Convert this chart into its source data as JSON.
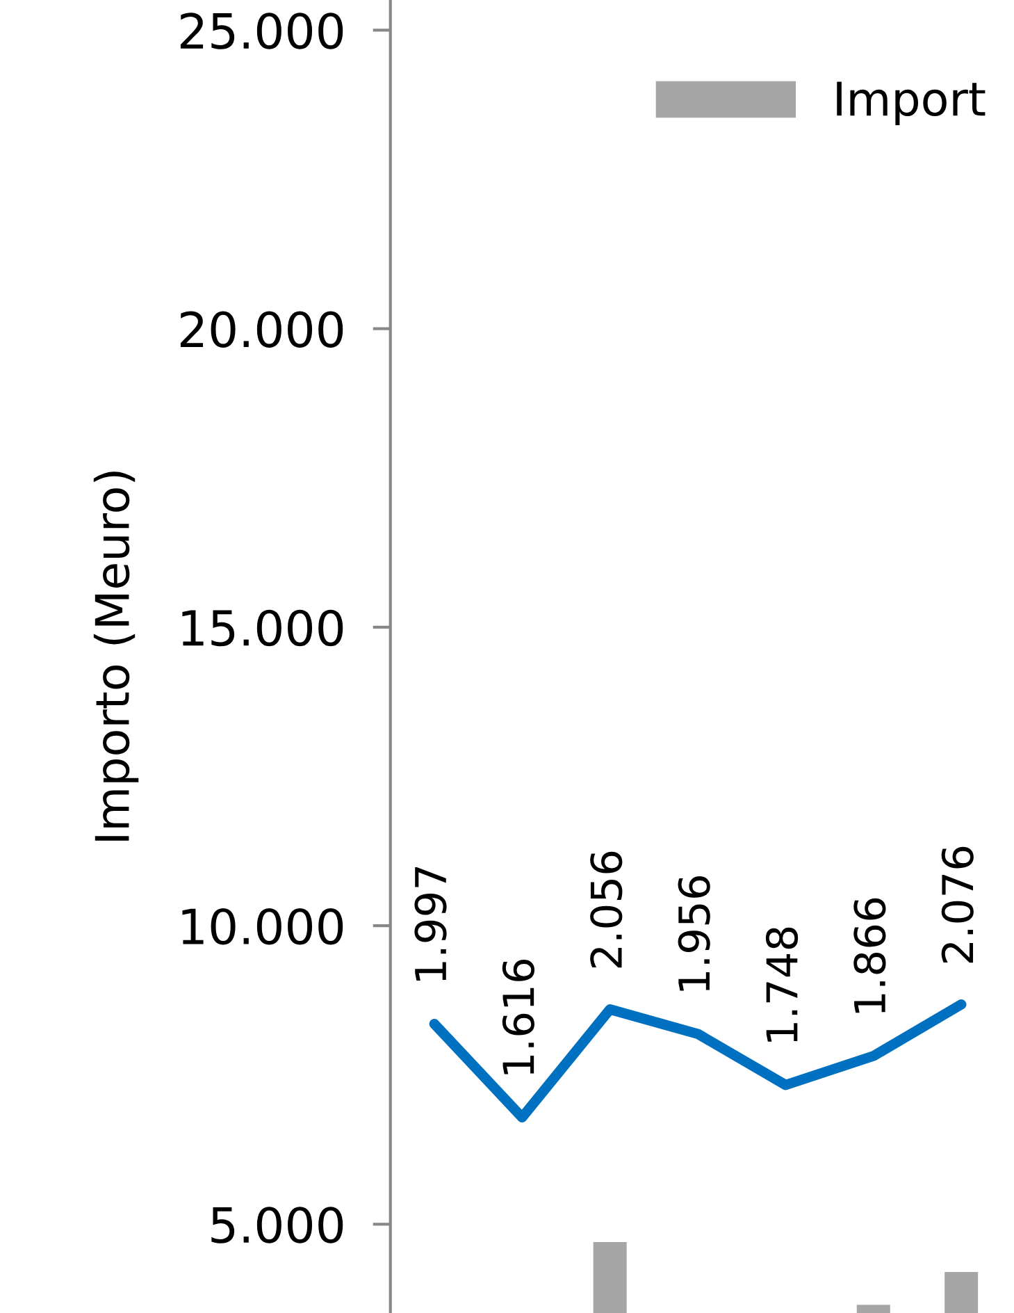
{
  "chart_data": {
    "type": "bar",
    "ylabel": "Importo (Meuro)",
    "categories": [
      null,
      null,
      null,
      null,
      null,
      null,
      null
    ],
    "series": [
      {
        "name": "Import",
        "color": "#a6a6a6",
        "values": [
          null,
          null,
          4700,
          null,
          null,
          3650,
          4200
        ]
      },
      {
        "type": "line",
        "axis": "y2",
        "color": "#0070c0",
        "values": [
          1.997,
          1.616,
          2.056,
          1.956,
          1.748,
          1.866,
          2.076
        ],
        "value_labels": [
          "1.997",
          "1.616",
          "2.056",
          "1.956",
          "1.748",
          "1.866",
          "2.076"
        ]
      }
    ],
    "ylim": [
      3513,
      25505
    ],
    "yticks": [
      {
        "value": 5000,
        "label": "5.000"
      },
      {
        "value": 10000,
        "label": "10.000"
      },
      {
        "value": 15000,
        "label": "15.000"
      },
      {
        "value": 20000,
        "label": "20.000"
      },
      {
        "value": 25000,
        "label": "25.000"
      }
    ],
    "tick_labels": "y",
    "legend": "top right",
    "grid": false,
    "marker": "none",
    "line_style": "solid"
  }
}
